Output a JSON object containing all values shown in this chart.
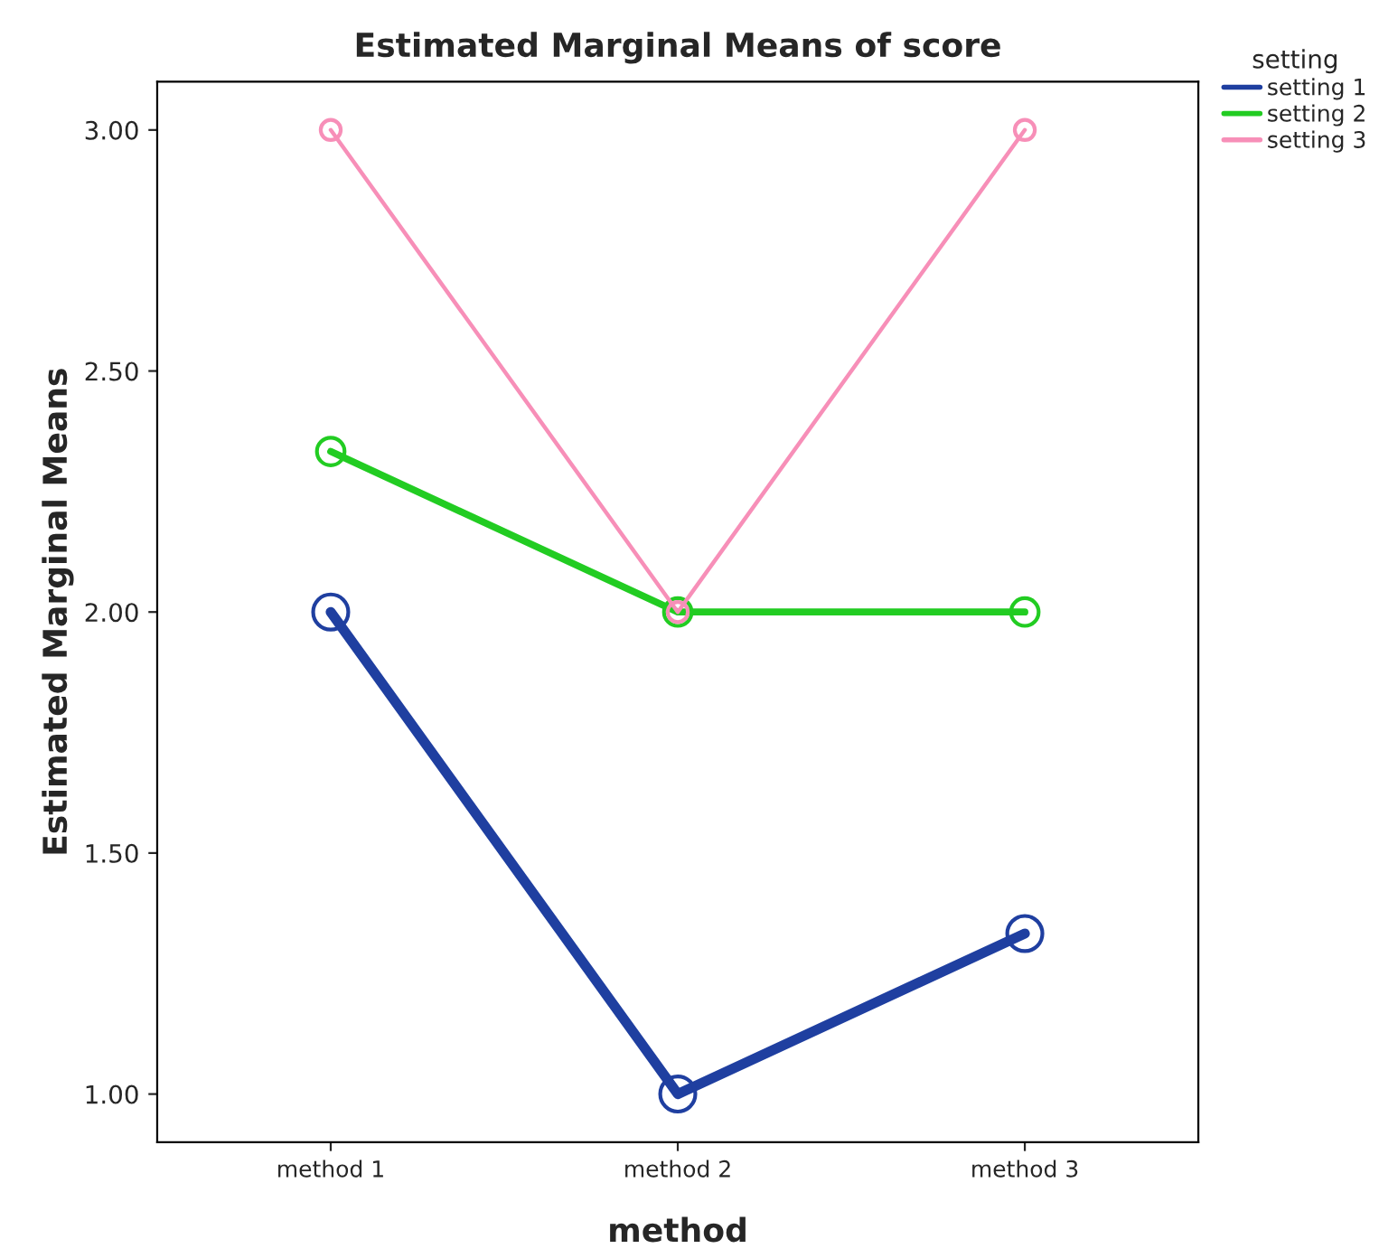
{
  "chart_data": {
    "type": "line",
    "title": "Estimated Marginal Means of score",
    "xlabel": "method",
    "ylabel": "Estimated Marginal Means",
    "legend_title": "setting",
    "categories": [
      "method 1",
      "method 2",
      "method 3"
    ],
    "series": [
      {
        "name": "setting 1",
        "color": "#1f3fa0",
        "values": [
          2.0,
          1.0,
          1.333
        ]
      },
      {
        "name": "setting 2",
        "color": "#22cc22",
        "values": [
          2.333,
          2.0,
          2.0
        ]
      },
      {
        "name": "setting 3",
        "color": "#f78fb8",
        "values": [
          3.0,
          2.0,
          3.0
        ]
      }
    ],
    "ylim": [
      0.9,
      3.1
    ],
    "yticks": [
      {
        "value": 1,
        "label": "1.00"
      },
      {
        "value": 1.5,
        "label": "1.50"
      },
      {
        "value": 2,
        "label": "2.00"
      },
      {
        "value": 2.5,
        "label": "2.50"
      },
      {
        "value": 3,
        "label": "3.00"
      }
    ],
    "grid": false,
    "legend": "top right",
    "marker": "circle",
    "line_style": "solid"
  }
}
